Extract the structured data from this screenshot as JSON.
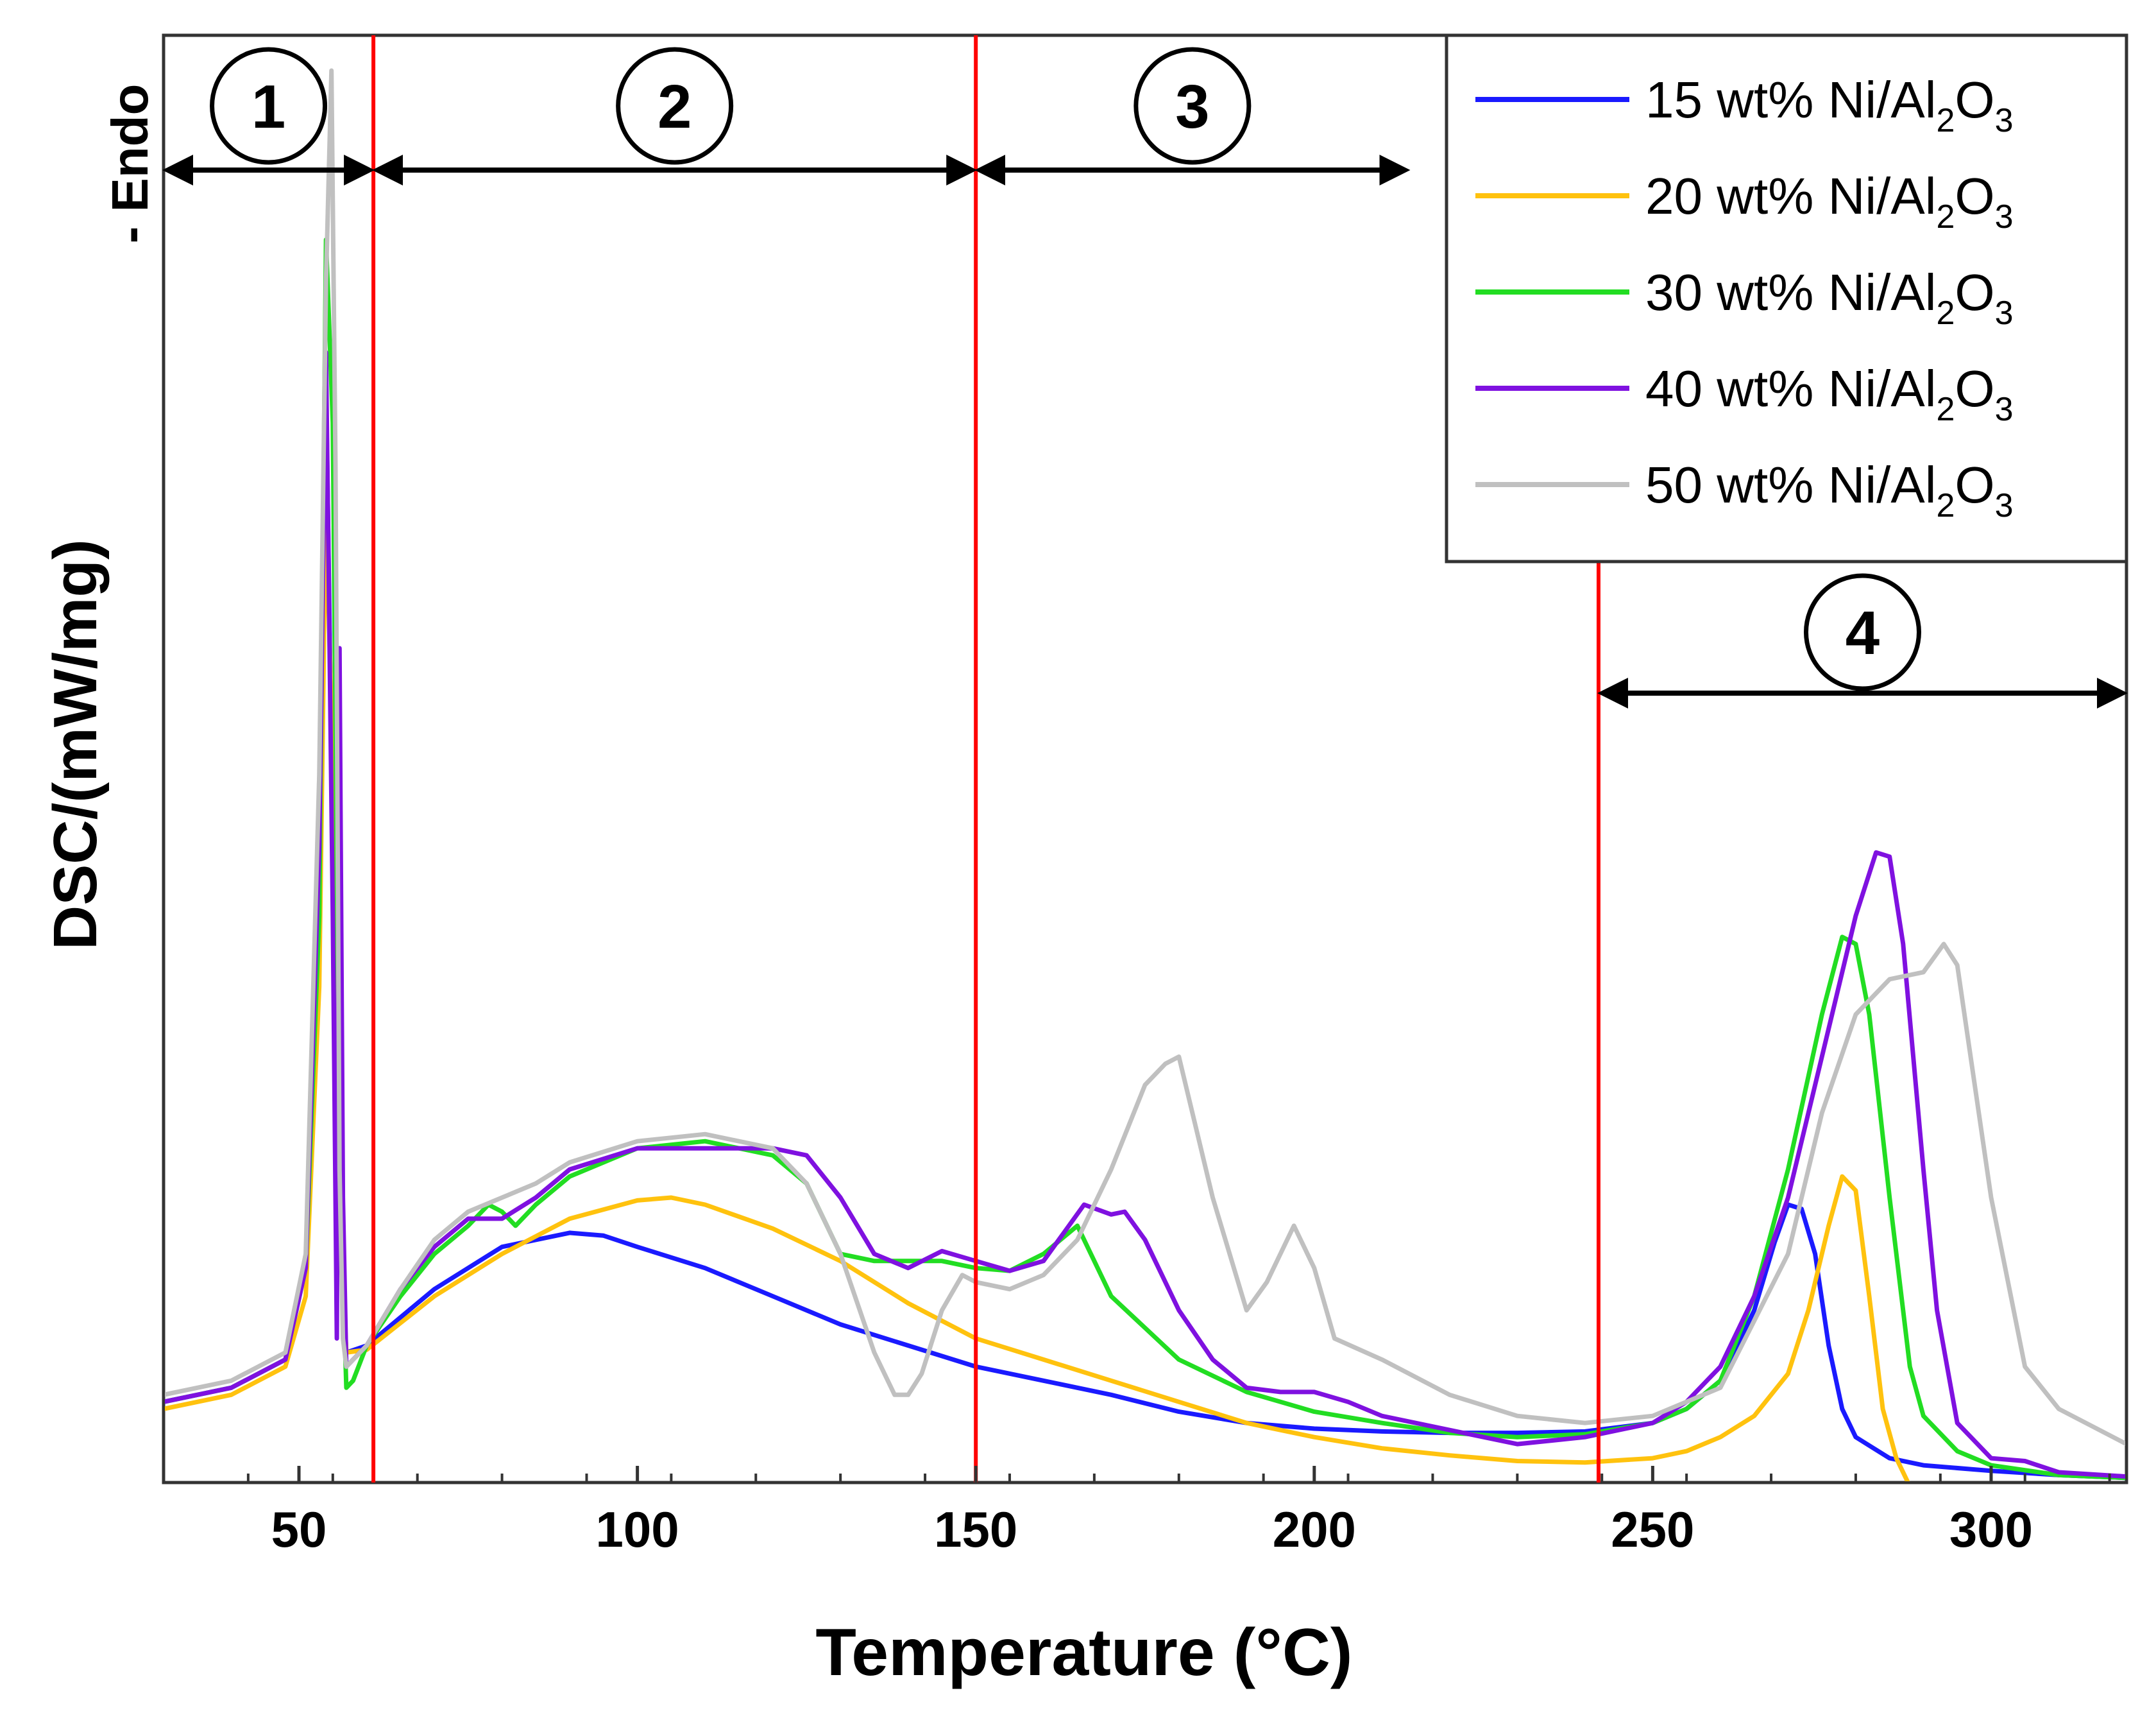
{
  "chart_data": {
    "type": "line",
    "title": "",
    "xlabel": "Temperature (°C)",
    "ylabel": "DSC/(mW/mg)",
    "ylabel_annotation": "- Endo",
    "xlim": [
      30,
      320
    ],
    "ylim": [
      0,
      100
    ],
    "x_ticks": [
      50,
      100,
      150,
      200,
      250,
      300
    ],
    "x_tick_labels": [
      "50",
      "100",
      "150",
      "200",
      "250",
      "300"
    ],
    "y_ticks_shown": false,
    "grid": false,
    "legend_position": "top-right",
    "region_boundaries": [
      61,
      150,
      242
    ],
    "boundary_color": "#ff0000",
    "regions": [
      {
        "label": "1",
        "from": 30,
        "to": 61
      },
      {
        "label": "2",
        "from": 61,
        "to": 150
      },
      {
        "label": "3",
        "from": 150,
        "to": 214
      },
      {
        "label": "4",
        "from": 242,
        "to": 320
      }
    ],
    "series": [
      {
        "name": "15 wt% Ni/Al2O3",
        "legend_main": "15 wt% Ni/Al",
        "sub1": "2",
        "mid": "O",
        "sub2": "3",
        "color": "#1a1aff",
        "x": [
          30,
          40,
          48,
          51,
          53,
          54,
          55,
          56,
          57,
          60,
          70,
          80,
          90,
          95,
          100,
          110,
          120,
          130,
          140,
          150,
          160,
          170,
          180,
          190,
          200,
          210,
          220,
          230,
          240,
          250,
          255,
          260,
          265,
          268,
          270,
          272,
          274,
          276,
          278,
          280,
          285,
          290,
          300,
          310,
          320
        ],
        "y": [
          5.5,
          6.5,
          8.5,
          15,
          40,
          78,
          45,
          18,
          9,
          9.5,
          13.5,
          16.5,
          17.5,
          17.3,
          16.5,
          15,
          13,
          11,
          9.5,
          8,
          7,
          6,
          4.8,
          4,
          3.6,
          3.4,
          3.3,
          3.3,
          3.4,
          4,
          5,
          7,
          12,
          16.8,
          19.5,
          19.2,
          16,
          9.5,
          5,
          3,
          1.5,
          1,
          0.6,
          0.3,
          0.1
        ]
      },
      {
        "name": "20 wt% Ni/Al2O3",
        "legend_main": "20 wt% Ni/Al",
        "sub1": "2",
        "mid": "O",
        "sub2": "3",
        "color": "#ffc20e",
        "x": [
          30,
          40,
          48,
          51,
          53,
          54,
          55,
          56,
          57,
          60,
          70,
          80,
          90,
          100,
          105,
          110,
          120,
          130,
          140,
          150,
          160,
          170,
          180,
          190,
          200,
          210,
          220,
          230,
          240,
          250,
          255,
          260,
          265,
          270,
          273,
          276,
          278,
          280,
          282,
          284,
          286,
          288
        ],
        "y": [
          5,
          6,
          8,
          13,
          35,
          70,
          50,
          20,
          9,
          9.2,
          13,
          16,
          18.5,
          19.8,
          20,
          19.5,
          17.8,
          15.5,
          12.5,
          10,
          8.5,
          7,
          5.5,
          4,
          3,
          2.2,
          1.7,
          1.3,
          1.2,
          1.5,
          2,
          3,
          4.5,
          7.5,
          12,
          18,
          21.5,
          20.5,
          13,
          5,
          1.5,
          -0.5
        ]
      },
      {
        "name": "30 wt% Ni/Al2O3",
        "legend_main": "30 wt% Ni/Al",
        "sub1": "2",
        "mid": "O",
        "sub2": "3",
        "color": "#22dd22",
        "x": [
          30,
          40,
          48,
          51,
          53,
          54,
          55,
          56,
          57,
          58,
          60,
          65,
          70,
          75,
          78,
          80,
          82,
          85,
          90,
          100,
          110,
          120,
          125,
          130,
          135,
          140,
          145,
          150,
          155,
          160,
          165,
          170,
          180,
          190,
          200,
          210,
          220,
          230,
          240,
          250,
          255,
          260,
          265,
          270,
          275,
          278,
          280,
          282,
          285,
          288,
          290,
          295,
          300,
          310,
          320
        ],
        "y": [
          5.5,
          6.5,
          8.5,
          15,
          40,
          88,
          75,
          22,
          6.5,
          7,
          9.5,
          13,
          16,
          18,
          19.5,
          19,
          18,
          19.5,
          21.5,
          23.5,
          24,
          23,
          21,
          16,
          15.5,
          15.5,
          15.5,
          15,
          14.8,
          16,
          18,
          13,
          8.5,
          6.2,
          4.8,
          4,
          3.3,
          3,
          3.2,
          4,
          5,
          7,
          13,
          22,
          33,
          38.5,
          38,
          33,
          20,
          8,
          4.5,
          2,
          1,
          0.3,
          0.1
        ]
      },
      {
        "name": "40 wt% Ni/Al2O3",
        "legend_main": "40 wt% Ni/Al",
        "sub1": "2",
        "mid": "O",
        "sub2": "3",
        "color": "#7f11e0",
        "x": [
          30,
          40,
          48,
          51,
          53,
          54,
          55,
          55.6,
          56,
          56.5,
          57,
          58,
          60,
          65,
          70,
          75,
          80,
          85,
          90,
          100,
          110,
          120,
          125,
          130,
          135,
          140,
          145,
          150,
          155,
          160,
          163,
          166,
          170,
          172,
          175,
          180,
          185,
          190,
          195,
          200,
          205,
          210,
          220,
          230,
          240,
          250,
          255,
          260,
          265,
          270,
          275,
          280,
          283,
          285,
          287,
          290,
          292,
          295,
          300,
          305,
          310,
          320
        ],
        "y": [
          5.5,
          6.5,
          8.5,
          15,
          45,
          80,
          40,
          10,
          59,
          20,
          8,
          8.5,
          9.5,
          13.5,
          16.5,
          18.5,
          18.5,
          20,
          22,
          23.5,
          23.5,
          23.5,
          23,
          20,
          16,
          15,
          16.2,
          15.5,
          14.8,
          15.5,
          17.5,
          19.5,
          18.8,
          19,
          17,
          12,
          8.5,
          6.5,
          6.2,
          6.2,
          5.5,
          4.5,
          3.5,
          2.5,
          3,
          4,
          5.5,
          8,
          13,
          20,
          30,
          40,
          44.5,
          44.2,
          38,
          22,
          12,
          4,
          1.5,
          1.3,
          0.5,
          0.2
        ]
      },
      {
        "name": "50 wt% Ni/Al2O3",
        "legend_main": "50 wt% Ni/Al",
        "sub1": "2",
        "mid": "O",
        "sub2": "3",
        "color": "#c0c0c0",
        "x": [
          30,
          40,
          48,
          51,
          53,
          54,
          54.8,
          55.4,
          56,
          56.5,
          57,
          60,
          65,
          70,
          75,
          80,
          85,
          90,
          100,
          110,
          120,
          125,
          130,
          135,
          138,
          140,
          142,
          145,
          148,
          150,
          155,
          160,
          165,
          170,
          175,
          178,
          180,
          182,
          185,
          190,
          193,
          197,
          200,
          203,
          210,
          220,
          230,
          240,
          250,
          260,
          270,
          275,
          280,
          285,
          290,
          293,
          295,
          300,
          305,
          310,
          320
        ],
        "y": [
          6,
          7,
          9,
          16,
          50,
          85,
          100,
          72,
          22,
          10,
          8,
          9.5,
          13.5,
          17,
          19,
          20,
          21,
          22.5,
          24,
          24.5,
          23.5,
          21,
          16,
          9,
          6,
          6,
          7.5,
          12,
          14.5,
          14,
          13.5,
          14.5,
          17,
          22,
          28,
          29.5,
          30,
          26,
          20,
          12,
          14,
          18,
          15,
          10,
          8.5,
          6,
          4.5,
          4,
          4.5,
          6.5,
          16,
          26,
          33,
          35.5,
          36,
          38,
          36.5,
          20,
          8,
          5,
          2.5
        ]
      }
    ]
  }
}
